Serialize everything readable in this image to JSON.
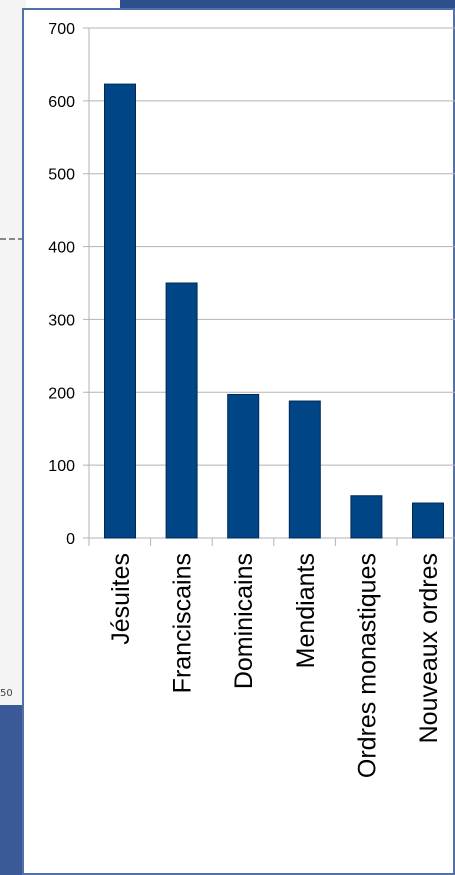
{
  "background": {
    "fragment_text": "50"
  },
  "colors": {
    "bar": "#004586",
    "bar_stroke": "#002a55",
    "grid": "#b3b3b3",
    "axis": "#b3b3b3",
    "frame": "#5470a8"
  },
  "chart_data": {
    "type": "bar",
    "categories": [
      "Jésuites",
      "Franciscains",
      "Dominicains",
      "Mendiants",
      "Ordres monastiques",
      "Nouveaux ordres"
    ],
    "values": [
      623,
      350,
      197,
      188,
      58,
      48
    ],
    "title": "",
    "xlabel": "",
    "ylabel": "",
    "ylim": [
      0,
      700
    ],
    "yticks": [
      "0",
      "100",
      "200",
      "300",
      "400",
      "500",
      "600",
      "700"
    ],
    "grid": true,
    "legend": "none"
  }
}
